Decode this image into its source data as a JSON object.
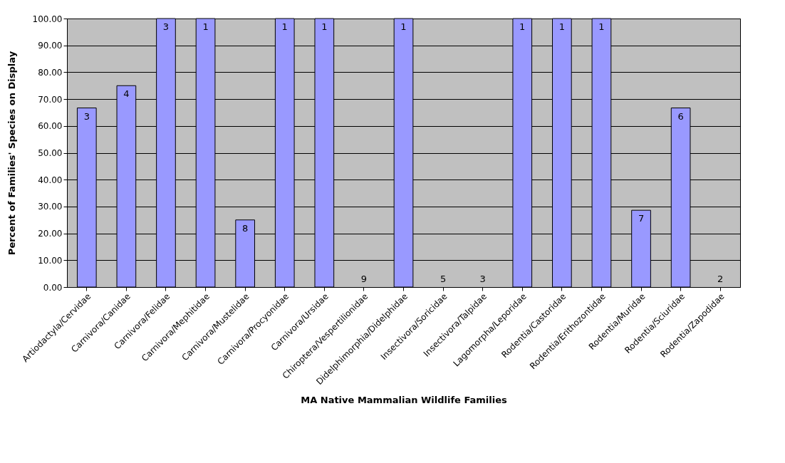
{
  "chart_data": {
    "type": "bar",
    "xlabel": "MA Native Mammalian Wildlife Families",
    "ylabel": "Percent of Families' Species on Display",
    "categories": [
      "Artiodactyla/Cervidae",
      "Carnivora/Canidae",
      "Carnivora/Felidae",
      "Carnivora/Mephitidae",
      "Carnivora/Mustelidae",
      "Carnivora/Procyonidae",
      "Carnivora/Ursidae",
      "Chiroptera/Vespertilionidae",
      "Didelphimorphia/Didelphidae",
      "Insectivora/Soricidae",
      "Insectivora/Talpidae",
      "Lagomorpha/Leporidae",
      "Rodentia/Castoridae",
      "Rodentia/Erithozontidae",
      "Rodentia/Muridae",
      "Rodentia/Sciuridae",
      "Rodentia/Zapodidae"
    ],
    "values": [
      66.7,
      75,
      100,
      100,
      25,
      100,
      100,
      0,
      100,
      0,
      0,
      100,
      100,
      100,
      28.6,
      66.7,
      0
    ],
    "annotations": [
      {
        "text": "3",
        "x": "Artiodactyla/Cervidae",
        "y": 66.7
      },
      {
        "text": "4",
        "x": "Carnivora/Canidae",
        "y": 75
      },
      {
        "text": "3",
        "x": "Carnivora/Felidae",
        "y": 100
      },
      {
        "text": "1",
        "x": "Carnivora/Mephitidae",
        "y": 100
      },
      {
        "text": "8",
        "x": "Carnivora/Mustelidae",
        "y": 25
      },
      {
        "text": "1",
        "x": "Carnivora/Procyonidae",
        "y": 100
      },
      {
        "text": "1",
        "x": "Carnivora/Ursidae",
        "y": 100
      },
      {
        "text": "9",
        "x": "Chiroptera/Vespertilionidae",
        "y": 0
      },
      {
        "text": "1",
        "x": "Didelphimorphia/Didelphidae",
        "y": 100
      },
      {
        "text": "5",
        "x": "Insectivora/Soricidae",
        "y": 0
      },
      {
        "text": "3",
        "x": "Insectivora/Talpidae",
        "y": 0
      },
      {
        "text": "1",
        "x": "Lagomorpha/Leporidae",
        "y": 100
      },
      {
        "text": "1",
        "x": "Rodentia/Castoridae",
        "y": 100
      },
      {
        "text": "1",
        "x": "Rodentia/Erithozontidae",
        "y": 100
      },
      {
        "text": "7",
        "x": "Rodentia/Muridae",
        "y": 28.6
      },
      {
        "text": "6",
        "x": "Rodentia/Sciuridae",
        "y": 66.7
      },
      {
        "text": "2",
        "x": "Rodentia/Zapodidae",
        "y": 0
      }
    ],
    "color": "#9999ff",
    "ylim": [
      0,
      100
    ],
    "yticks": [
      {
        "value": 0,
        "label": "0.00"
      },
      {
        "value": 10,
        "label": "10.00"
      },
      {
        "value": 20,
        "label": "20.00"
      },
      {
        "value": 30,
        "label": "30.00"
      },
      {
        "value": 40,
        "label": "40.00"
      },
      {
        "value": 50,
        "label": "50.00"
      },
      {
        "value": 60,
        "label": "60.00"
      },
      {
        "value": 70,
        "label": "70.00"
      },
      {
        "value": 80,
        "label": "80.00"
      },
      {
        "value": 90,
        "label": "90.00"
      },
      {
        "value": 100,
        "label": "100.00"
      }
    ],
    "grid": "y"
  }
}
